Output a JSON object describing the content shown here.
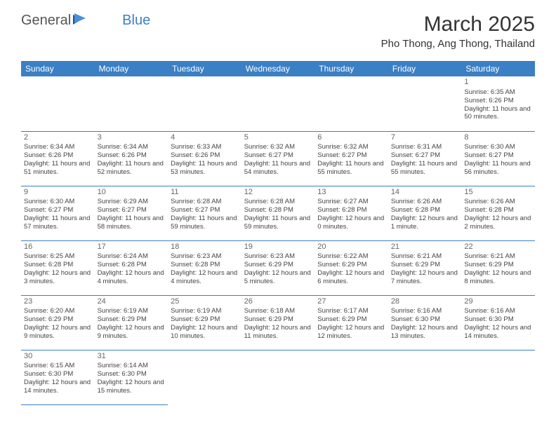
{
  "logo": {
    "part1": "General",
    "part2": "Blue"
  },
  "title": "March 2025",
  "location": "Pho Thong, Ang Thong, Thailand",
  "colors": {
    "header_bg": "#3b7fc4",
    "text": "#333333",
    "cell_border": "#3b7fc4"
  },
  "day_headers": [
    "Sunday",
    "Monday",
    "Tuesday",
    "Wednesday",
    "Thursday",
    "Friday",
    "Saturday"
  ],
  "first_weekday": 6,
  "days": [
    {
      "n": 1,
      "sr": "6:35 AM",
      "ss": "6:26 PM",
      "dl": "11 hours and 50 minutes."
    },
    {
      "n": 2,
      "sr": "6:34 AM",
      "ss": "6:26 PM",
      "dl": "11 hours and 51 minutes."
    },
    {
      "n": 3,
      "sr": "6:34 AM",
      "ss": "6:26 PM",
      "dl": "11 hours and 52 minutes."
    },
    {
      "n": 4,
      "sr": "6:33 AM",
      "ss": "6:26 PM",
      "dl": "11 hours and 53 minutes."
    },
    {
      "n": 5,
      "sr": "6:32 AM",
      "ss": "6:27 PM",
      "dl": "11 hours and 54 minutes."
    },
    {
      "n": 6,
      "sr": "6:32 AM",
      "ss": "6:27 PM",
      "dl": "11 hours and 55 minutes."
    },
    {
      "n": 7,
      "sr": "6:31 AM",
      "ss": "6:27 PM",
      "dl": "11 hours and 55 minutes."
    },
    {
      "n": 8,
      "sr": "6:30 AM",
      "ss": "6:27 PM",
      "dl": "11 hours and 56 minutes."
    },
    {
      "n": 9,
      "sr": "6:30 AM",
      "ss": "6:27 PM",
      "dl": "11 hours and 57 minutes."
    },
    {
      "n": 10,
      "sr": "6:29 AM",
      "ss": "6:27 PM",
      "dl": "11 hours and 58 minutes."
    },
    {
      "n": 11,
      "sr": "6:28 AM",
      "ss": "6:27 PM",
      "dl": "11 hours and 59 minutes."
    },
    {
      "n": 12,
      "sr": "6:28 AM",
      "ss": "6:28 PM",
      "dl": "11 hours and 59 minutes."
    },
    {
      "n": 13,
      "sr": "6:27 AM",
      "ss": "6:28 PM",
      "dl": "12 hours and 0 minutes."
    },
    {
      "n": 14,
      "sr": "6:26 AM",
      "ss": "6:28 PM",
      "dl": "12 hours and 1 minute."
    },
    {
      "n": 15,
      "sr": "6:26 AM",
      "ss": "6:28 PM",
      "dl": "12 hours and 2 minutes."
    },
    {
      "n": 16,
      "sr": "6:25 AM",
      "ss": "6:28 PM",
      "dl": "12 hours and 3 minutes."
    },
    {
      "n": 17,
      "sr": "6:24 AM",
      "ss": "6:28 PM",
      "dl": "12 hours and 4 minutes."
    },
    {
      "n": 18,
      "sr": "6:23 AM",
      "ss": "6:28 PM",
      "dl": "12 hours and 4 minutes."
    },
    {
      "n": 19,
      "sr": "6:23 AM",
      "ss": "6:29 PM",
      "dl": "12 hours and 5 minutes."
    },
    {
      "n": 20,
      "sr": "6:22 AM",
      "ss": "6:29 PM",
      "dl": "12 hours and 6 minutes."
    },
    {
      "n": 21,
      "sr": "6:21 AM",
      "ss": "6:29 PM",
      "dl": "12 hours and 7 minutes."
    },
    {
      "n": 22,
      "sr": "6:21 AM",
      "ss": "6:29 PM",
      "dl": "12 hours and 8 minutes."
    },
    {
      "n": 23,
      "sr": "6:20 AM",
      "ss": "6:29 PM",
      "dl": "12 hours and 9 minutes."
    },
    {
      "n": 24,
      "sr": "6:19 AM",
      "ss": "6:29 PM",
      "dl": "12 hours and 9 minutes."
    },
    {
      "n": 25,
      "sr": "6:19 AM",
      "ss": "6:29 PM",
      "dl": "12 hours and 10 minutes."
    },
    {
      "n": 26,
      "sr": "6:18 AM",
      "ss": "6:29 PM",
      "dl": "12 hours and 11 minutes."
    },
    {
      "n": 27,
      "sr": "6:17 AM",
      "ss": "6:29 PM",
      "dl": "12 hours and 12 minutes."
    },
    {
      "n": 28,
      "sr": "6:16 AM",
      "ss": "6:30 PM",
      "dl": "12 hours and 13 minutes."
    },
    {
      "n": 29,
      "sr": "6:16 AM",
      "ss": "6:30 PM",
      "dl": "12 hours and 14 minutes."
    },
    {
      "n": 30,
      "sr": "6:15 AM",
      "ss": "6:30 PM",
      "dl": "12 hours and 14 minutes."
    },
    {
      "n": 31,
      "sr": "6:14 AM",
      "ss": "6:30 PM",
      "dl": "12 hours and 15 minutes."
    }
  ],
  "labels": {
    "sunrise": "Sunrise:",
    "sunset": "Sunset:",
    "daylight": "Daylight:"
  }
}
